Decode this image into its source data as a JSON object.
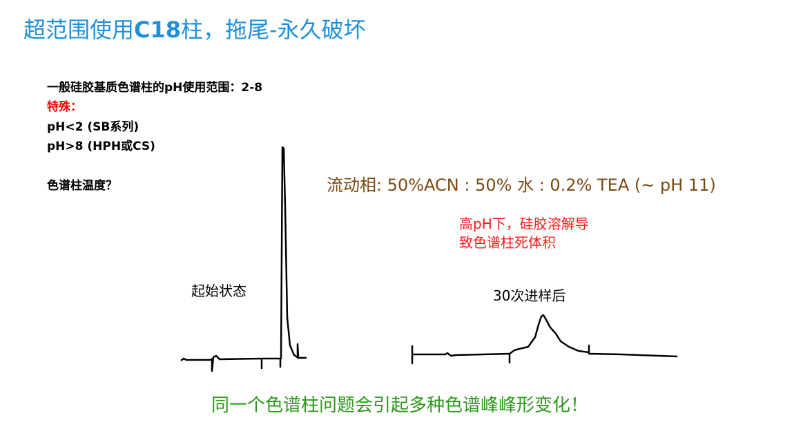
{
  "title": {
    "prefix": "超范围使用",
    "bold": "C18",
    "suffix": "柱，拖尾-永久破坏"
  },
  "info": {
    "line1": "一般硅胶基质色谱柱的pH使用范围：2-8",
    "special": "特殊：",
    "line3": "pH<2 (SB系列)",
    "line4": "pH>8 (HPH或CS)",
    "temp": "色谱柱温度？"
  },
  "mobile_phase": "流动相: 50%ACN : 50% 水 : 0.2% TEA (~ pH 11)",
  "note": {
    "line1": "高pH下，硅胶溶解导",
    "line2": "致色谱柱死体积"
  },
  "labels": {
    "initial": "起始状态",
    "after": "30次进样后"
  },
  "conclusion": "同一个色谱柱问题会引起多种色谱峰峰形变化！",
  "colors": {
    "title": "#1e8fd8",
    "mobile_phase": "#7a4a12",
    "note": "#ff1a1a",
    "conclusion": "#2b9a1a"
  }
}
